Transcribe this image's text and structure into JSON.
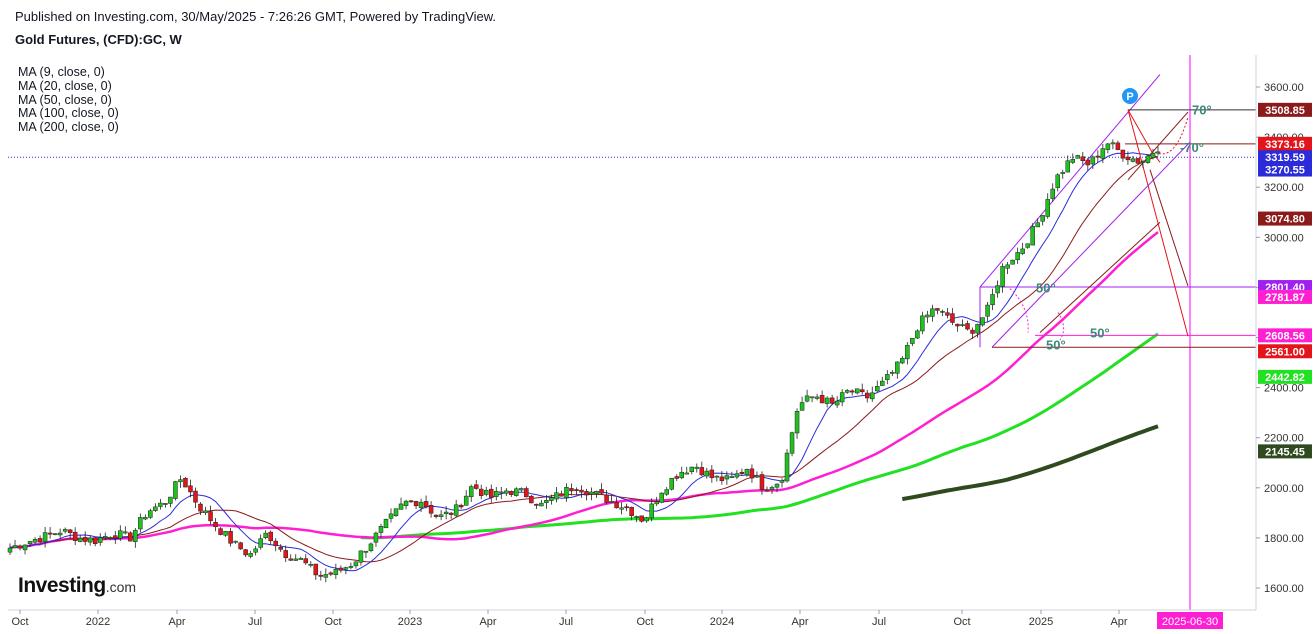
{
  "header": {
    "published": "Published on Investing.com, 30/May/2025 - 7:26:26 GMT, Powered by TradingView.",
    "symbol": "Gold Futures, (CFD):GC, W"
  },
  "indicators": [
    "MA (9, close, 0)",
    "MA (20, close, 0)",
    "MA (50, close, 0)",
    "MA (100, close, 0)",
    "MA (200, close, 0)"
  ],
  "logo": {
    "main": "Investing",
    "suffix": ".com"
  },
  "colors": {
    "up": "#1ec21e",
    "down": "#e3151a",
    "ma9": "#2b2bd9",
    "ma20": "#8b1a1a",
    "ma50": "#ff1fd2",
    "ma100": "#22e022",
    "ma200": "#2e4a1e",
    "channel": "#a020f0",
    "projection": "#ff00ff"
  },
  "chart_data": {
    "type": "candlestick",
    "title": "Gold Futures, (CFD):GC, W",
    "y_axis": {
      "min": 1550,
      "max": 3680,
      "ticks": [
        "1600.00",
        "1800.00",
        "2000.00",
        "2200.00",
        "2400.00",
        "2600.00",
        "2800.00",
        "3000.00",
        "3200.00",
        "3400.00",
        "3600.00"
      ]
    },
    "x_axis": {
      "labels": [
        "Oct",
        "2022",
        "Apr",
        "Jul",
        "Oct",
        "2023",
        "Apr",
        "Jul",
        "Oct",
        "2024",
        "Apr",
        "Jul",
        "Oct",
        "2025",
        "Apr"
      ],
      "highlight_label": "2025-06-30"
    },
    "price_labels": [
      {
        "value": "3508.85",
        "price": 3508.85,
        "color": "#8b1a1a"
      },
      {
        "value": "3373.16",
        "price": 3373.16,
        "color": "#e3151a"
      },
      {
        "value": "3319.59",
        "price": 3319.59,
        "color": "#2b2bd9"
      },
      {
        "value": "3270.55",
        "price": 3270.55,
        "color": "#2b2bd9"
      },
      {
        "value": "3074.80",
        "price": 3074.8,
        "color": "#8b1a1a"
      },
      {
        "value": "2801.40",
        "price": 2801.4,
        "color": "#a020f0"
      },
      {
        "value": "2781.87",
        "price": 2781.87,
        "color": "#ff1fd2"
      },
      {
        "value": "2608.56",
        "price": 2608.56,
        "color": "#ff1fd2"
      },
      {
        "value": "2561.00",
        "price": 2561.0,
        "color": "#e3151a"
      },
      {
        "value": "2442.82",
        "price": 2442.82,
        "color": "#22e022"
      },
      {
        "value": "2145.45",
        "price": 2145.45,
        "color": "#2e4a1e"
      }
    ],
    "annotations": [
      {
        "text": "70°"
      },
      {
        "text": "-70°"
      },
      {
        "text": "50°"
      },
      {
        "text": "50°"
      },
      {
        "text": "50°"
      }
    ],
    "marker": "P",
    "price_path": [
      1760,
      1785,
      1805,
      1830,
      1800,
      1790,
      1820,
      1800,
      1905,
      1940,
      2040,
      1930,
      1850,
      1780,
      1730,
      1820,
      1740,
      1710,
      1650,
      1660,
      1700,
      1780,
      1860,
      1940,
      1950,
      1880,
      1910,
      2010,
      1960,
      1990,
      1980,
      1930,
      1970,
      2010,
      1980,
      1950,
      1920,
      1870,
      1990,
      2060,
      2090,
      2040,
      2030,
      2080,
      2000,
      2030,
      2330,
      2370,
      2330,
      2390,
      2360,
      2420,
      2500,
      2650,
      2720,
      2660,
      2620,
      2700,
      2890,
      2950,
      3060,
      3230,
      3320,
      3290,
      3380,
      3330,
      3300,
      3360
    ]
  }
}
